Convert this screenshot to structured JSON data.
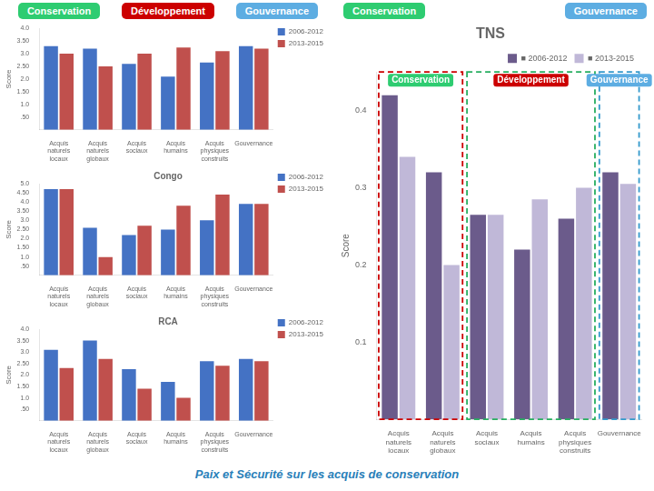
{
  "chart_data": [
    {
      "type": "bar",
      "categories": [
        "Acquis naturels\nlocaux",
        "Acquis naturels\nglobaux",
        "Acquis sociaux",
        "Acquis humains",
        "Acquis physiques\nconstruits",
        "Gouvernance"
      ],
      "series": [
        {
          "name": "2006-2012",
          "color": "#4472c4",
          "values": [
            3.3,
            3.2,
            2.6,
            2.1,
            2.65,
            3.3
          ]
        },
        {
          "name": "2013-2015",
          "color": "#c0504d",
          "values": [
            3.0,
            2.5,
            3.0,
            3.25,
            3.1,
            3.2
          ]
        }
      ],
      "ylabel": "Score",
      "ylim": [
        0,
        4.0
      ],
      "yticks": [
        {
          "value": 0.5,
          "label": ".50"
        },
        {
          "value": 1.0,
          "label": "1.0"
        },
        {
          "value": 1.5,
          "label": "1.50"
        },
        {
          "value": 2.0,
          "label": "2.0"
        },
        {
          "value": 2.5,
          "label": "2.50"
        },
        {
          "value": 3.0,
          "label": "3.0"
        },
        {
          "value": 3.5,
          "label": "3.50"
        },
        {
          "value": 4.0,
          "label": "4.0"
        }
      ],
      "grid": false,
      "legend": "right",
      "annotations": [
        {
          "text": "Conservation",
          "color": "#2ecc71"
        },
        {
          "text": "Développement",
          "color": "#cc0000"
        },
        {
          "text": "Gouvernance",
          "color": "#5dade2"
        }
      ]
    },
    {
      "type": "bar",
      "title": "Congo",
      "categories": [
        "Acquis naturels\nlocaux",
        "Acquis naturels\nglobaux",
        "Acquis sociaux",
        "Acquis humains",
        "Acquis physiques\nconstruits",
        "Gouvernance"
      ],
      "series": [
        {
          "name": "2006-2012",
          "color": "#4472c4",
          "values": [
            4.7,
            2.6,
            2.2,
            2.5,
            3.0,
            3.9
          ]
        },
        {
          "name": "2013-2015",
          "color": "#c0504d",
          "values": [
            4.7,
            1.0,
            2.7,
            3.8,
            4.4,
            3.9
          ]
        }
      ],
      "ylabel": "Score",
      "ylim": [
        0,
        5.0
      ],
      "yticks": [
        {
          "value": 0.5,
          "label": ".50"
        },
        {
          "value": 1.0,
          "label": "1.0"
        },
        {
          "value": 1.5,
          "label": "1.50"
        },
        {
          "value": 2.0,
          "label": "2.0"
        },
        {
          "value": 2.5,
          "label": "2.50"
        },
        {
          "value": 3.0,
          "label": "3.0"
        },
        {
          "value": 3.5,
          "label": "3.50"
        },
        {
          "value": 4.0,
          "label": "4.0"
        },
        {
          "value": 4.5,
          "label": "4.50"
        },
        {
          "value": 5.0,
          "label": "5.0"
        }
      ],
      "grid": false,
      "legend": "right"
    },
    {
      "type": "bar",
      "title": "RCA",
      "categories": [
        "Acquis naturels\nlocaux",
        "Acquis naturels\nglobaux",
        "Acquis sociaux",
        "Acquis humains",
        "Acquis physiques\nconstruits",
        "Gouvernance"
      ],
      "series": [
        {
          "name": "2006-2012",
          "color": "#4472c4",
          "values": [
            3.1,
            3.5,
            2.25,
            1.7,
            2.6,
            2.7
          ]
        },
        {
          "name": "2013-2015",
          "color": "#c0504d",
          "values": [
            2.3,
            2.7,
            1.4,
            1.0,
            2.4,
            2.6
          ]
        }
      ],
      "ylabel": "Score",
      "ylim": [
        0,
        4.0
      ],
      "yticks": [
        {
          "value": 0.5,
          "label": ".50"
        },
        {
          "value": 1.0,
          "label": "1.0"
        },
        {
          "value": 1.5,
          "label": "1.50"
        },
        {
          "value": 2.0,
          "label": "2.0"
        },
        {
          "value": 2.5,
          "label": "2.50"
        },
        {
          "value": 3.0,
          "label": "3.0"
        },
        {
          "value": 3.5,
          "label": "3.50"
        },
        {
          "value": 4.0,
          "label": "4.0"
        }
      ],
      "grid": false,
      "legend": "right"
    },
    {
      "type": "bar",
      "title": "TNS",
      "subtitle": "Paix et Sécurité sur les acquis de conservation",
      "categories": [
        "Acquis\nnaturels\nlocaux",
        "Acquis\nnaturels\nglobaux",
        "Acquis\nsociaux",
        "Acquis\nhumains",
        "Acquis\nphysiques\nconstruits",
        "Gouvernance"
      ],
      "series": [
        {
          "name": "■ 2006-2012",
          "color": "#6b5b8b",
          "values": [
            0.42,
            0.32,
            0.265,
            0.22,
            0.26,
            0.32
          ]
        },
        {
          "name": "■ 2013-2015",
          "color": "#c0b8d8",
          "values": [
            0.34,
            0.2,
            0.265,
            0.285,
            0.3,
            0.305
          ]
        }
      ],
      "ylabel": "Score",
      "ylim": [
        0,
        0.45
      ],
      "yticks": [
        0.1,
        0.2,
        0.3,
        0.4
      ],
      "grid": false,
      "legend": "upper right",
      "annotations": [
        {
          "text": "Conservation",
          "color": "#2ecc71"
        },
        {
          "text": "Gouvernance",
          "color": "#5dade2"
        },
        {
          "text": "Conservation",
          "color": "#2ecc71",
          "border_color": "#cc0000",
          "x": [
            "Acquis\nnaturels\nlocaux",
            "Acquis\nnaturels\nglobaux"
          ]
        },
        {
          "text": "Développement",
          "color": "#cc0000",
          "border_color": "#27ae60",
          "x": [
            "Acquis\nsociaux",
            "Acquis\nphysiques\nconstruits"
          ]
        },
        {
          "text": "Gouvernance",
          "color": "#5dade2",
          "border_color": "#3399cc",
          "x": [
            "Gouvernance",
            "Gouvernance"
          ]
        }
      ]
    }
  ]
}
